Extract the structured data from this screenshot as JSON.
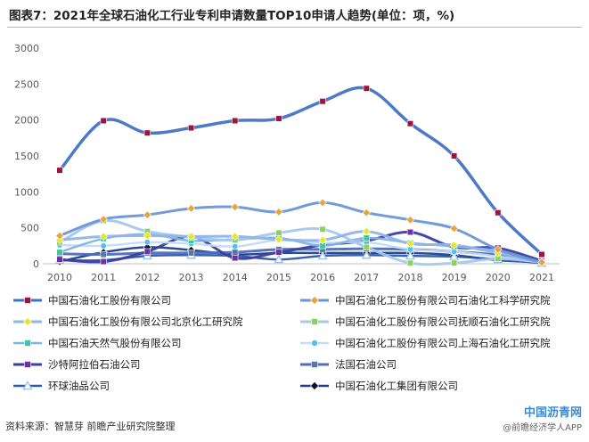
{
  "title": "图表7：2021年全球石油化工行业专利申请数量TOP10申请人趋势(单位：项，%)",
  "source": "资料来源：智慧芽 前瞻产业研究院整理",
  "watermark": {
    "title": "中国沥青网",
    "subtitle": "@前瞻经济学人APP"
  },
  "chart_data": {
    "type": "line",
    "x": [
      "2010",
      "2011",
      "2012",
      "2013",
      "2014",
      "2015",
      "2016",
      "2017",
      "2018",
      "2019",
      "2020",
      "2021"
    ],
    "ylim": [
      0,
      3000
    ],
    "yticks": [
      0,
      500,
      1000,
      1500,
      2000,
      2500,
      3000
    ],
    "grid": false,
    "legend_position": "bottom",
    "series": [
      {
        "name": "中国石油化工股份有限公司",
        "color": "#4472C4",
        "width": 3.5,
        "marker": "square",
        "marker_color": "#A0143C",
        "values": [
          1300,
          1990,
          1820,
          1890,
          1990,
          2020,
          2260,
          2440,
          1950,
          1500,
          710,
          130
        ]
      },
      {
        "name": "中国石油化工股份有限公司石油化工科学研究院",
        "color": "#6A96D6",
        "width": 3,
        "marker": "diamond",
        "marker_color": "#E8A33D",
        "values": [
          390,
          620,
          680,
          770,
          790,
          720,
          850,
          710,
          610,
          490,
          200,
          20
        ]
      },
      {
        "name": "中国石油化工股份有限公司北京化工研究院",
        "color": "#8EB4E8",
        "width": 3,
        "marker": "diamond",
        "marker_color": "#E6E62A",
        "values": [
          330,
          380,
          390,
          380,
          380,
          340,
          330,
          450,
          280,
          260,
          150,
          20
        ]
      },
      {
        "name": "中国石油化工股份有限公司抚顺石油化工研究院",
        "color": "#A5C8EE",
        "width": 3,
        "marker": "square",
        "marker_color": "#8ED160",
        "values": [
          300,
          600,
          450,
          370,
          330,
          430,
          480,
          230,
          10,
          10,
          70,
          20
        ]
      },
      {
        "name": "中国石油天然气股份有限公司",
        "color": "#7FB2E5",
        "width": 2.5,
        "marker": "square",
        "marker_color": "#3FC7A4",
        "values": [
          160,
          350,
          410,
          320,
          340,
          360,
          250,
          360,
          290,
          240,
          180,
          20
        ]
      },
      {
        "name": "中国石油化工股份有限公司上海石油化工研究院",
        "color": "#C3DBF5",
        "width": 2.5,
        "marker": "circle",
        "marker_color": "#4FC1EE",
        "values": [
          260,
          250,
          300,
          280,
          240,
          330,
          290,
          300,
          200,
          170,
          100,
          20
        ]
      },
      {
        "name": "沙特阿拉伯石油公司",
        "color": "#3A3FA0",
        "width": 3,
        "marker": "square",
        "marker_color": "#7030A0",
        "values": [
          60,
          30,
          170,
          380,
          80,
          160,
          260,
          320,
          440,
          230,
          220,
          40
        ]
      },
      {
        "name": "法国石油公司",
        "color": "#4F6DB8",
        "width": 3,
        "marker": "square",
        "marker_color": "#5875A6",
        "values": [
          140,
          130,
          150,
          150,
          160,
          200,
          200,
          210,
          200,
          170,
          120,
          20
        ]
      },
      {
        "name": "环球油品公司",
        "color": "#2C5AA8",
        "width": 2.5,
        "marker": "triangle",
        "marker_color": "#9EC3EB",
        "values": [
          50,
          50,
          110,
          120,
          110,
          60,
          110,
          120,
          110,
          100,
          60,
          10
        ]
      },
      {
        "name": "中国石油化工集团有限公司",
        "color": "#1F3F8C",
        "width": 2.5,
        "marker": "diamond",
        "marker_color": "#0D0D2E",
        "values": [
          30,
          160,
          230,
          190,
          130,
          150,
          150,
          150,
          150,
          120,
          50,
          20
        ]
      }
    ]
  }
}
